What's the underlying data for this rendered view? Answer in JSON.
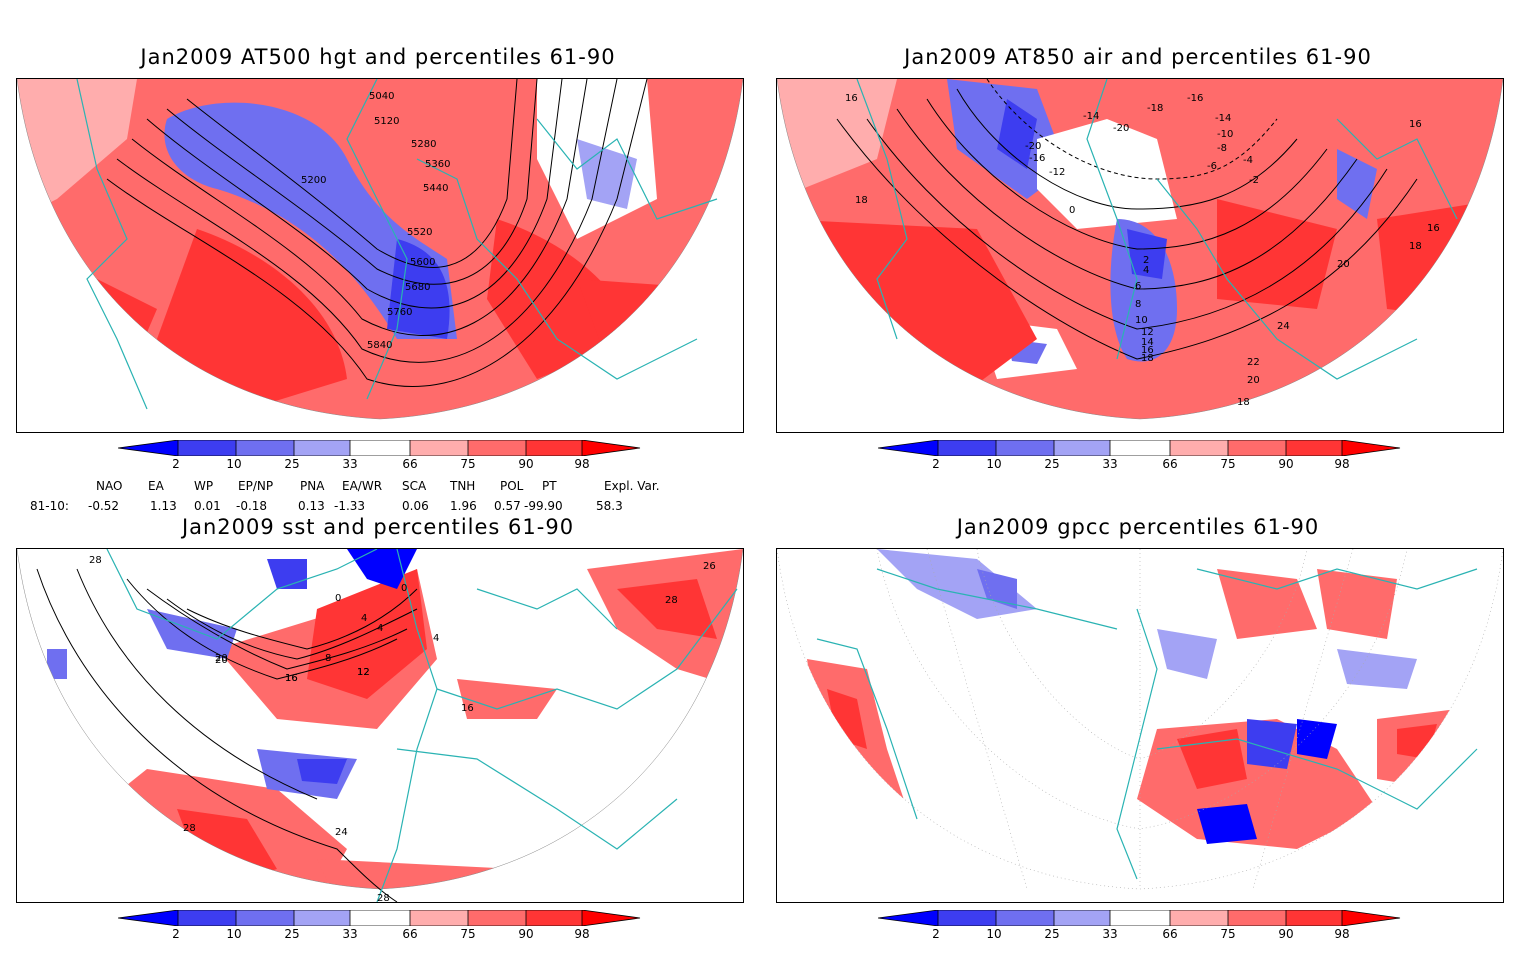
{
  "panels": {
    "tl": {
      "title": "Jan2009 AT500 hgt and percentiles 61-90",
      "contour_labels": [
        "5040",
        "5120",
        "5200",
        "5280",
        "5360",
        "5440",
        "5520",
        "5600",
        "5680",
        "5760",
        "5840"
      ]
    },
    "tr": {
      "title": "Jan2009 AT850 air and percentiles 61-90",
      "contour_labels": [
        "16",
        "18",
        "-20",
        "-16",
        "-14",
        "-18",
        "-16",
        "-14",
        "-10",
        "-8",
        "-6",
        "-4",
        "-2",
        "0",
        "16",
        "18",
        "16",
        "20",
        "24",
        "22",
        "20",
        "18",
        "2",
        "4",
        "6",
        "8",
        "10",
        "12",
        "14",
        "16",
        "18",
        "-12",
        "-20"
      ]
    },
    "bl": {
      "title": "Jan2009 sst and percentiles 61-90",
      "contour_labels": [
        "28",
        "20",
        "16",
        "12",
        "8",
        "4",
        "4",
        "4",
        "0",
        "0",
        "16",
        "24",
        "28",
        "28",
        "26",
        "28",
        "20",
        "12",
        "16"
      ]
    },
    "br": {
      "title": "Jan2009 gpcc percentiles 61-90",
      "contour_labels": []
    }
  },
  "colorbar": {
    "labels": [
      "2",
      "10",
      "25",
      "33",
      "66",
      "75",
      "90",
      "98"
    ],
    "colors": [
      "#0000ff",
      "#3d3df0",
      "#6f6ff0",
      "#a3a3f5",
      "#ffffff",
      "#ffadad",
      "#ff6b6b",
      "#ff3535",
      "#ff0000"
    ]
  },
  "indices": {
    "headers": [
      "NAO",
      "EA",
      "WP",
      "EP/NP",
      "PNA",
      "EA/WR",
      "SCA",
      "TNH",
      "POL",
      "PT",
      "Expl. Var."
    ],
    "row_label": "81-10:",
    "values": [
      "-0.52",
      "1.13",
      "0.01",
      "-0.18",
      "0.13",
      "-1.33",
      "0.06",
      "1.96",
      "0.57",
      "-99.90",
      "58.3"
    ]
  }
}
